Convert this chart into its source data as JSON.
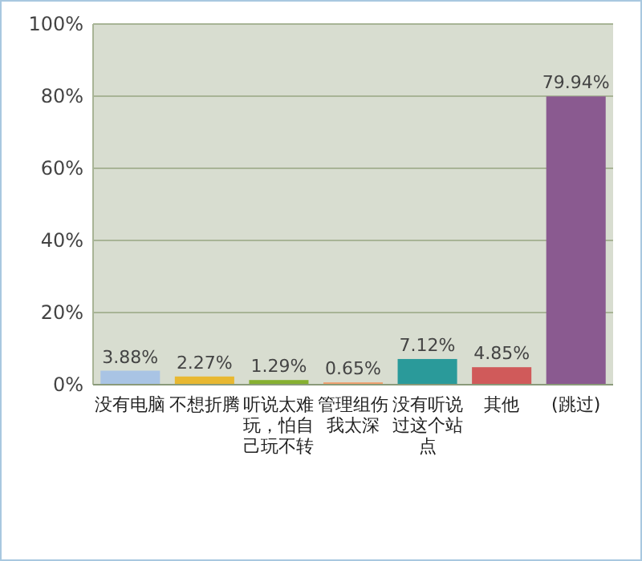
{
  "chart_data": {
    "type": "bar",
    "categories": [
      "没有电脑",
      "不想折腾",
      "听说太难玩，怕自己玩不转",
      "管理组伤我太深",
      "没有听说过这个站点",
      "其他",
      "(跳过)"
    ],
    "values": [
      3.88,
      2.27,
      1.29,
      0.65,
      7.12,
      4.85,
      79.94
    ],
    "value_labels": [
      "3.88%",
      "2.27%",
      "1.29%",
      "0.65%",
      "7.12%",
      "4.85%",
      "79.94%"
    ],
    "colors": [
      "#a9c4e4",
      "#e8b830",
      "#86b030",
      "#f0a070",
      "#2a9a9a",
      "#d05a5a",
      "#8a5a90"
    ],
    "ylim": [
      0,
      100
    ],
    "yticks": [
      {
        "value": 0,
        "label": "0%"
      },
      {
        "value": 20,
        "label": "20%"
      },
      {
        "value": 40,
        "label": "40%"
      },
      {
        "value": 60,
        "label": "60%"
      },
      {
        "value": 80,
        "label": "80%"
      },
      {
        "value": 100,
        "label": "100%"
      }
    ],
    "grid": "y"
  }
}
